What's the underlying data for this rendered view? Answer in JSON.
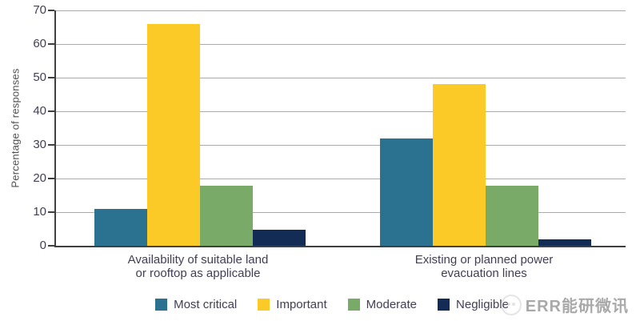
{
  "chart_data": {
    "type": "bar",
    "title": "",
    "ylabel": "Percentage of responses",
    "xlabel": "",
    "ylim": [
      0,
      70
    ],
    "ytick_step": 10,
    "grid": true,
    "legend_position": "bottom",
    "categories": [
      "Availability of suitable land\nor rooftop as applicable",
      "Existing or planned power\nevacuation lines"
    ],
    "series": [
      {
        "name": "Most critical",
        "color": "#2B7291",
        "values": [
          11,
          32
        ]
      },
      {
        "name": "Important",
        "color": "#FCCA26",
        "values": [
          66,
          48
        ]
      },
      {
        "name": "Moderate",
        "color": "#7AAA68",
        "values": [
          17.8,
          17.8
        ]
      },
      {
        "name": "Negligible",
        "color": "#122C55",
        "values": [
          4.8,
          1.8
        ]
      }
    ]
  },
  "axis_style": {
    "gridline_color": "#ABABAB",
    "axis_color": "#3F3F3F",
    "tick_label_color": "#423E54",
    "axis_title_color": "#4F4F4F"
  },
  "watermark": {
    "text": "ERR能研微讯",
    "icon": "chat-logo-icon",
    "color": "#9B9B9B"
  }
}
